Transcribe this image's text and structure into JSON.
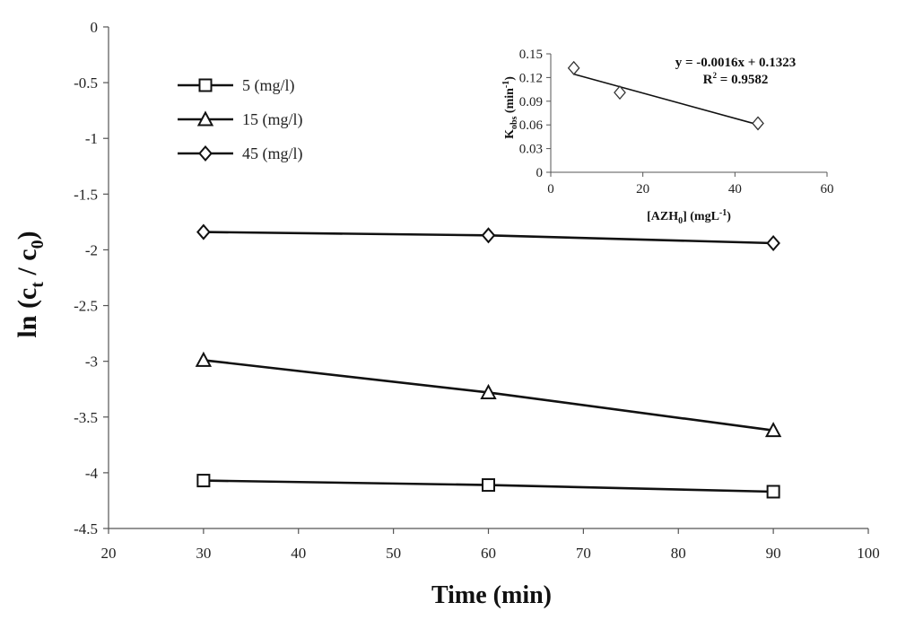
{
  "chart_data": [
    {
      "type": "line",
      "xlabel": "Time (min)",
      "ylabel_parts": {
        "main": "ln (c",
        "sub1": "t",
        "mid": " / c",
        "sub2": "0",
        "end": ")"
      },
      "xlim": [
        20,
        100
      ],
      "ylim": [
        -4.5,
        0
      ],
      "xticks": [
        "20",
        "30",
        "40",
        "50",
        "60",
        "70",
        "80",
        "90",
        "100"
      ],
      "yticks": [
        "0",
        "-0.5",
        "-1",
        "-1.5",
        "-2",
        "-2.5",
        "-3",
        "-3.5",
        "-4",
        "-4.5"
      ],
      "legend_position": "top-left",
      "grid": false,
      "series": [
        {
          "name": "5 (mg/l)",
          "marker": "square",
          "x": [
            30,
            60,
            90
          ],
          "y": [
            -4.07,
            -4.11,
            -4.17
          ]
        },
        {
          "name": "15 (mg/l)",
          "marker": "triangle",
          "x": [
            30,
            60,
            90
          ],
          "y": [
            -2.99,
            -3.28,
            -3.62
          ]
        },
        {
          "name": "45 (mg/l)",
          "marker": "diamond",
          "x": [
            30,
            60,
            90
          ],
          "y": [
            -1.84,
            -1.87,
            -1.94
          ]
        }
      ]
    },
    {
      "type": "scatter",
      "xlabel_parts": {
        "main": "[AZH",
        "sub": "0",
        "end": "] (mgL",
        "sup": "-1",
        "close": ")"
      },
      "ylabel_parts": {
        "main": "K",
        "sub": "obs",
        "mid": " (min",
        "sup": "-1",
        "end": ")"
      },
      "xlim": [
        0,
        60
      ],
      "ylim": [
        0,
        0.15
      ],
      "xticks": [
        "0",
        "20",
        "40",
        "60"
      ],
      "yticks": [
        "0",
        "0.03",
        "0.06",
        "0.09",
        "0.12",
        "0.15"
      ],
      "points": {
        "marker": "diamond",
        "x": [
          5,
          15,
          45
        ],
        "y": [
          0.132,
          0.101,
          0.062
        ]
      },
      "trendline": {
        "slope": -0.0016,
        "intercept": 0.1323,
        "x_range": [
          5,
          45
        ]
      },
      "equation": "y = -0.0016x + 0.1323",
      "r2_parts": {
        "main": "R",
        "sup": "2",
        "end": " = 0.9582"
      }
    }
  ]
}
